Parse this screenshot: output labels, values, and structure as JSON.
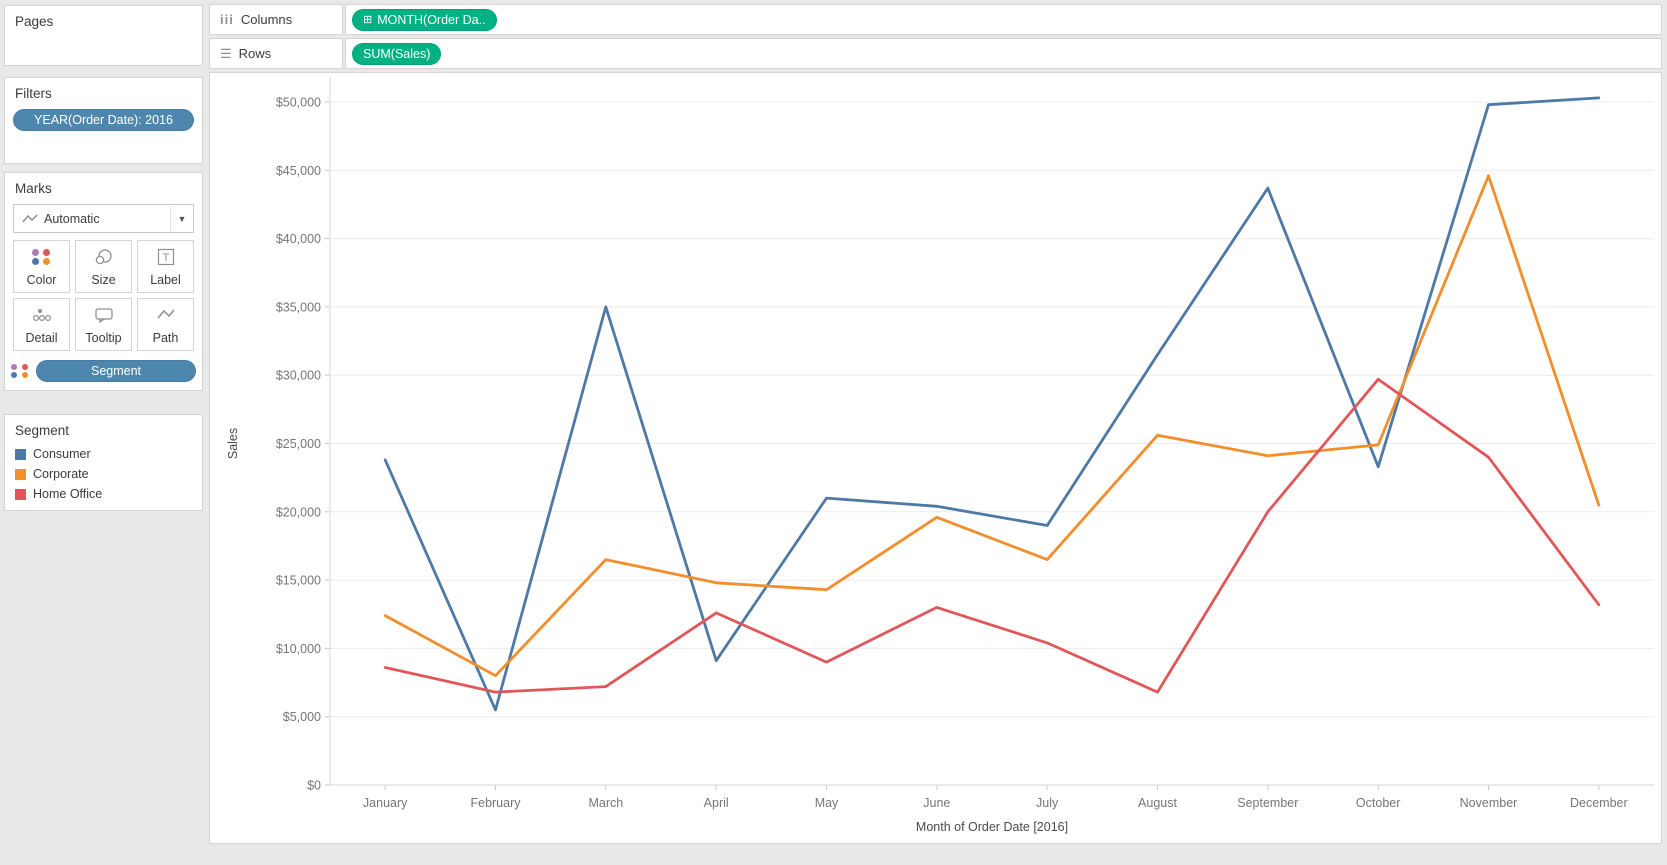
{
  "shelves": {
    "columns": {
      "label": "Columns",
      "icon_glyph": "iii",
      "pill_prefix": "⊞",
      "pill_text": "MONTH(Order Da.."
    },
    "rows": {
      "label": "Rows",
      "icon_glyph": "☰",
      "pill_text": "SUM(Sales)"
    }
  },
  "sidebar": {
    "pages": {
      "title": "Pages"
    },
    "filters": {
      "title": "Filters",
      "pill_text": "YEAR(Order Date): 2016"
    },
    "marks": {
      "title": "Marks",
      "mark_type_label": "Automatic",
      "buttons": [
        {
          "label": "Color"
        },
        {
          "label": "Size"
        },
        {
          "label": "Label"
        },
        {
          "label": "Detail"
        },
        {
          "label": "Tooltip"
        },
        {
          "label": "Path"
        }
      ],
      "segment_pill_text": "Segment"
    },
    "legend": {
      "title": "Segment",
      "items": [
        {
          "label": "Consumer",
          "color": "#4e79a7"
        },
        {
          "label": "Corporate",
          "color": "#f28e2b"
        },
        {
          "label": "Home Office",
          "color": "#e15759"
        }
      ]
    }
  },
  "icons": {
    "dropdown_arrow": "▼",
    "label_glyph": "T",
    "color_dots": [
      "#a87bb5",
      "#e15759",
      "#4e79a7",
      "#f28e2b"
    ]
  },
  "colors": {
    "pill_green": "#00b184",
    "pill_blue": "#4e87ad",
    "grid_line": "#ececec",
    "axis_line": "#d7d7d7",
    "tick_mark": "#c9c9c9"
  },
  "chart_data": {
    "type": "line",
    "title": "",
    "xlabel": "Month of Order Date [2016]",
    "ylabel": "Sales",
    "ylim": [
      0,
      50000
    ],
    "grid": true,
    "legend_position": "left-panel",
    "categories": [
      "January",
      "February",
      "March",
      "April",
      "May",
      "June",
      "July",
      "August",
      "September",
      "October",
      "November",
      "December"
    ],
    "series": [
      {
        "name": "Consumer",
        "color": "#4e79a7",
        "values": [
          23800,
          5500,
          35000,
          9100,
          21000,
          20400,
          19000,
          31500,
          43700,
          23300,
          49800,
          50300
        ]
      },
      {
        "name": "Corporate",
        "color": "#f28e2b",
        "values": [
          12400,
          8000,
          16500,
          14800,
          14300,
          19600,
          16500,
          25600,
          24100,
          24900,
          44600,
          20500
        ]
      },
      {
        "name": "Home Office",
        "color": "#e15759",
        "values": [
          8600,
          6800,
          7200,
          12600,
          9000,
          13000,
          10400,
          6800,
          20000,
          29700,
          24000,
          13200
        ]
      }
    ],
    "y_ticks": [
      {
        "value": 0,
        "label": "$0"
      },
      {
        "value": 5000,
        "label": "$5,000"
      },
      {
        "value": 10000,
        "label": "$10,000"
      },
      {
        "value": 15000,
        "label": "$15,000"
      },
      {
        "value": 20000,
        "label": "$20,000"
      },
      {
        "value": 25000,
        "label": "$25,000"
      },
      {
        "value": 30000,
        "label": "$30,000"
      },
      {
        "value": 35000,
        "label": "$35,000"
      },
      {
        "value": 40000,
        "label": "$40,000"
      },
      {
        "value": 45000,
        "label": "$45,000"
      },
      {
        "value": 50000,
        "label": "$50,000"
      }
    ]
  }
}
